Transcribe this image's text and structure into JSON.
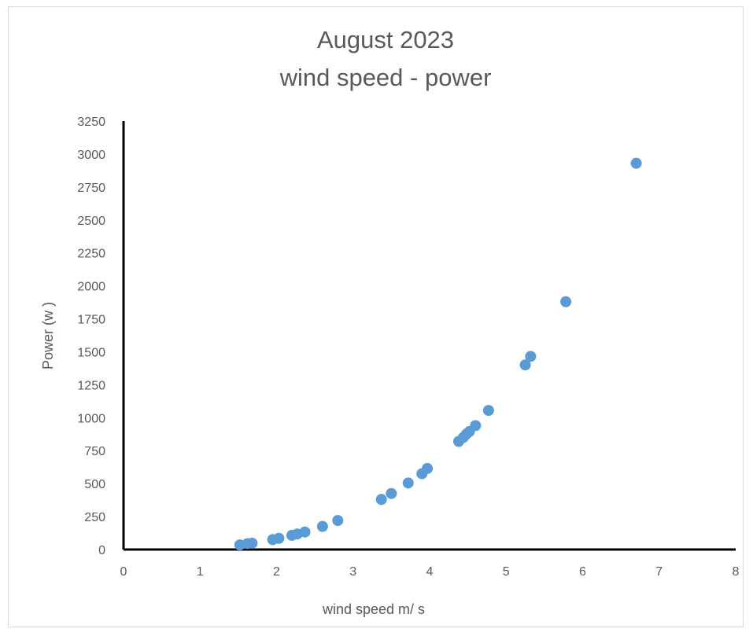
{
  "chart_data": {
    "type": "scatter",
    "title_lines": [
      "August  2023",
      "wind speed - power"
    ],
    "xlabel": "wind speed m/ s",
    "ylabel": "Power (w )",
    "xlim": [
      0,
      8
    ],
    "ylim": [
      0,
      3250
    ],
    "x_ticks": [
      "0",
      "1",
      "2",
      "3",
      "4",
      "5",
      "6",
      "7",
      "8"
    ],
    "y_ticks": [
      "0",
      "250",
      "500",
      "750",
      "1000",
      "1250",
      "1500",
      "1750",
      "2000",
      "2250",
      "2500",
      "2750",
      "3000",
      "3250"
    ],
    "grid": false,
    "legend": "none",
    "marker_color": "#5b9bd5",
    "axis_color": "#000000",
    "series": [
      {
        "points": [
          {
            "x": 1.52,
            "y": 35
          },
          {
            "x": 1.62,
            "y": 45
          },
          {
            "x": 1.68,
            "y": 48
          },
          {
            "x": 1.95,
            "y": 75
          },
          {
            "x": 2.03,
            "y": 85
          },
          {
            "x": 2.2,
            "y": 108
          },
          {
            "x": 2.27,
            "y": 118
          },
          {
            "x": 2.37,
            "y": 133
          },
          {
            "x": 2.6,
            "y": 175
          },
          {
            "x": 2.8,
            "y": 220
          },
          {
            "x": 3.37,
            "y": 380
          },
          {
            "x": 3.5,
            "y": 425
          },
          {
            "x": 3.72,
            "y": 505
          },
          {
            "x": 3.9,
            "y": 575
          },
          {
            "x": 3.97,
            "y": 615
          },
          {
            "x": 4.38,
            "y": 820
          },
          {
            "x": 4.44,
            "y": 850
          },
          {
            "x": 4.48,
            "y": 875
          },
          {
            "x": 4.52,
            "y": 895
          },
          {
            "x": 4.6,
            "y": 940
          },
          {
            "x": 4.77,
            "y": 1055
          },
          {
            "x": 5.25,
            "y": 1400
          },
          {
            "x": 5.32,
            "y": 1465
          },
          {
            "x": 5.78,
            "y": 1880
          },
          {
            "x": 6.7,
            "y": 2930
          }
        ]
      }
    ]
  }
}
